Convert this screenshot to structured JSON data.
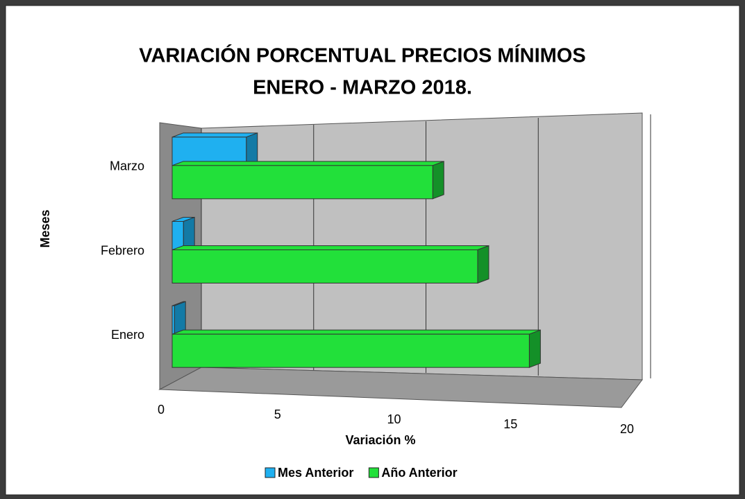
{
  "chart_data": {
    "type": "bar3d_horizontal",
    "title_lines": [
      "VARIACIÓN PORCENTUAL PRECIOS MÍNIMOS",
      "ENERO - MARZO 2018."
    ],
    "x_label": "Variación %",
    "y_label": "Meses",
    "categories": [
      "Enero",
      "Febrero",
      "Marzo"
    ],
    "series": [
      {
        "name": "Mes Anterior",
        "color": "#1fb0f0",
        "values": [
          0.1,
          0.5,
          3.3
        ]
      },
      {
        "name": "Año Anterior",
        "color": "#22e03a",
        "values": [
          15.9,
          13.6,
          11.6
        ]
      }
    ],
    "xlim": [
      0,
      20
    ],
    "xticks": [
      0,
      5,
      10,
      15,
      20
    ],
    "grid": true,
    "legend": "bottom"
  }
}
